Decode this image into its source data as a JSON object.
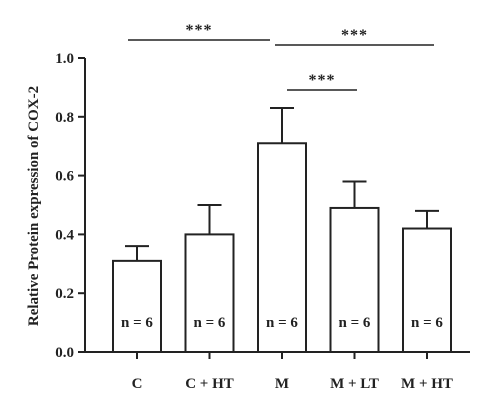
{
  "chart_data": {
    "type": "bar",
    "ylabel": "Relative Protein expression of COX-2",
    "ylim": [
      0.0,
      1.0
    ],
    "yticks": [
      "0.0",
      "0.2",
      "0.4",
      "0.6",
      "0.8",
      "1.0"
    ],
    "categories": [
      "C",
      "C + HT",
      "M",
      "M + LT",
      "M + HT"
    ],
    "values": [
      0.31,
      0.4,
      0.71,
      0.49,
      0.42
    ],
    "errors": [
      0.05,
      0.1,
      0.12,
      0.09,
      0.06
    ],
    "n_labels": [
      "n = 6",
      "n = 6",
      "n = 6",
      "n = 6",
      "n = 6"
    ],
    "significance": [
      {
        "from": 0,
        "to": 2,
        "label": "***"
      },
      {
        "from": 2,
        "to": 4,
        "label": "***"
      },
      {
        "from": 2,
        "to": 3,
        "label": "***"
      }
    ],
    "bar_fill": "#ffffff",
    "line_color": "#222222"
  }
}
